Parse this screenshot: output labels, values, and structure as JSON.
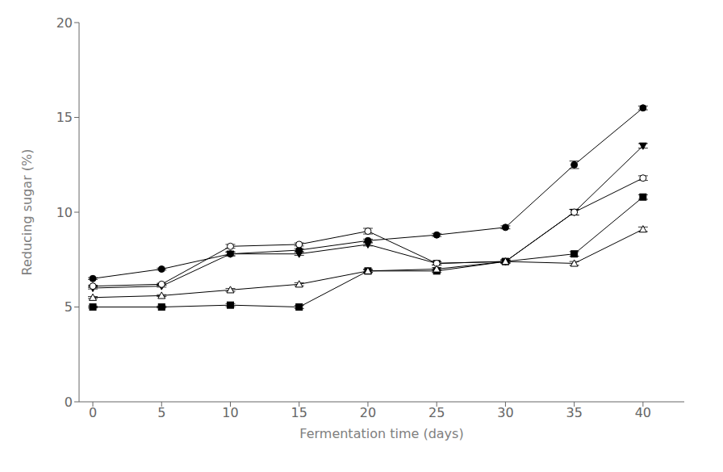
{
  "chart_data": {
    "type": "line",
    "xlabel": "Fermentation time (days)",
    "ylabel": "Reducing sugar (%)",
    "x": [
      0,
      5,
      10,
      15,
      20,
      25,
      30,
      35,
      40
    ],
    "series": [
      {
        "color": "#000000",
        "marker": "circle",
        "values": [
          6.5,
          7.0,
          7.8,
          8.0,
          8.5,
          8.8,
          9.2,
          12.5,
          15.5
        ],
        "errors": [
          0.05,
          0.05,
          0.1,
          0.08,
          0.08,
          0.08,
          0.08,
          0.2,
          0.1
        ]
      },
      {
        "color": "#000000",
        "marker": "triangle-down",
        "values": [
          6.0,
          6.1,
          7.8,
          7.8,
          8.3,
          7.3,
          7.4,
          10.0,
          13.5
        ],
        "errors": [
          0.05,
          0.05,
          0.1,
          0.08,
          0.08,
          0.08,
          0.08,
          0.15,
          0.12
        ]
      },
      {
        "color": "#000000",
        "marker": "circle-open",
        "values": [
          6.1,
          6.2,
          8.2,
          8.3,
          9.0,
          7.3,
          7.4,
          10.0,
          11.8
        ],
        "errors": [
          0.05,
          0.05,
          0.1,
          0.08,
          0.15,
          0.08,
          0.08,
          0.15,
          0.12
        ]
      },
      {
        "color": "#000000",
        "marker": "square",
        "values": [
          5.0,
          5.0,
          5.1,
          5.0,
          6.9,
          6.9,
          7.4,
          7.8,
          10.8
        ],
        "errors": [
          0.05,
          0.05,
          0.08,
          0.08,
          0.08,
          0.08,
          0.08,
          0.12,
          0.12
        ]
      },
      {
        "color": "#000000",
        "marker": "triangle-up-open",
        "values": [
          5.5,
          5.6,
          5.9,
          6.2,
          6.9,
          7.0,
          7.4,
          7.3,
          9.1
        ],
        "errors": [
          0.05,
          0.05,
          0.08,
          0.08,
          0.08,
          0.08,
          0.08,
          0.1,
          0.12
        ]
      }
    ],
    "xlim": [
      -1,
      43
    ],
    "ylim": [
      0,
      20
    ],
    "xticks": [
      0,
      5,
      10,
      15,
      20,
      25,
      30,
      35,
      40
    ],
    "yticks": [
      0,
      5,
      10,
      15,
      20
    ],
    "grid": false
  }
}
